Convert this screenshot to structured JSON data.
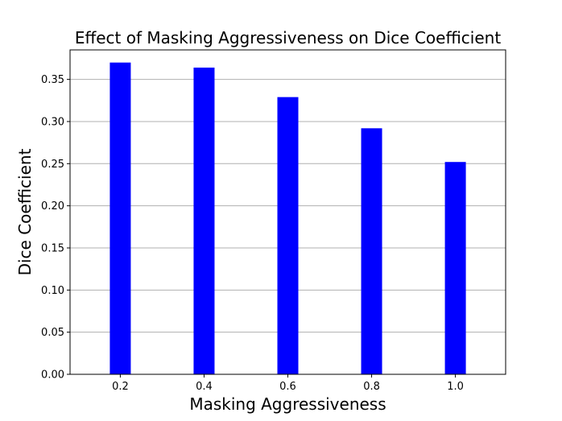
{
  "chart_data": {
    "type": "bar",
    "title": "Effect of Masking Aggressiveness on Dice Coefficient",
    "xlabel": "Masking Aggressiveness",
    "ylabel": "Dice Coefficient",
    "categories": [
      "0.2",
      "0.4",
      "0.6",
      "0.8",
      "1.0"
    ],
    "values": [
      0.37,
      0.364,
      0.329,
      0.292,
      0.252
    ],
    "ylim": [
      0,
      0.385
    ],
    "yticks": [
      "0.00",
      "0.05",
      "0.10",
      "0.15",
      "0.20",
      "0.25",
      "0.30",
      "0.35"
    ],
    "grid": "horizontal",
    "bar_color": "#0000ff",
    "grid_color": "#b0b0b0"
  }
}
